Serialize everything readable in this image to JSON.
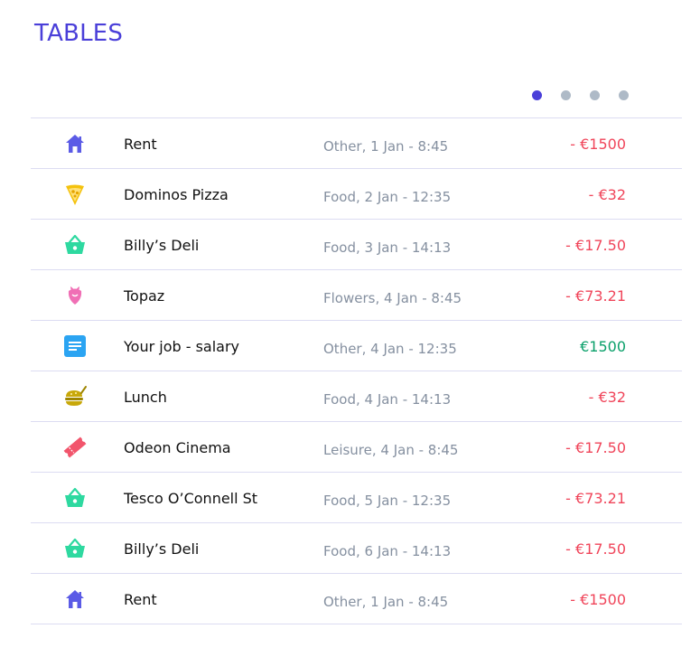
{
  "page": {
    "title": "TABLES"
  },
  "pager": {
    "dots": 4,
    "active": 0
  },
  "colors": {
    "accent": "#4a3fd9",
    "negative": "#f0455a",
    "positive": "#0aa06a",
    "muted": "#8590a0"
  },
  "transactions": [
    {
      "icon": "home-icon",
      "name": "Rent",
      "meta": "Other, 1 Jan - 8:45",
      "amount": "- €1500",
      "type": "negative"
    },
    {
      "icon": "pizza-icon",
      "name": "Dominos Pizza",
      "meta": "Food, 2 Jan - 12:35",
      "amount": "- €32",
      "type": "negative"
    },
    {
      "icon": "basket-icon",
      "name": "Billy’s Deli",
      "meta": "Food, 3 Jan - 14:13",
      "amount": "- €17.50",
      "type": "negative"
    },
    {
      "icon": "flower-icon",
      "name": "Topaz",
      "meta": "Flowers,  4 Jan - 8:45",
      "amount": "- €73.21",
      "type": "negative"
    },
    {
      "icon": "document-icon",
      "name": "Your job - salary",
      "meta": "Other, 4 Jan - 12:35",
      "amount": "€1500",
      "type": "positive"
    },
    {
      "icon": "burger-icon",
      "name": "Lunch",
      "meta": "Food, 4 Jan - 14:13",
      "amount": "- €32",
      "type": "negative"
    },
    {
      "icon": "ticket-icon",
      "name": "Odeon Cinema",
      "meta": "Leisure, 4 Jan - 8:45",
      "amount": "- €17.50",
      "type": "negative"
    },
    {
      "icon": "basket-icon",
      "name": "Tesco O’Connell St",
      "meta": "Food, 5 Jan - 12:35",
      "amount": "- €73.21",
      "type": "negative"
    },
    {
      "icon": "basket-icon",
      "name": "Billy’s Deli",
      "meta": "Food, 6 Jan - 14:13",
      "amount": "- €17.50",
      "type": "negative"
    },
    {
      "icon": "home-icon",
      "name": "Rent",
      "meta": "Other, 1 Jan - 8:45",
      "amount": "- €1500",
      "type": "negative"
    }
  ]
}
